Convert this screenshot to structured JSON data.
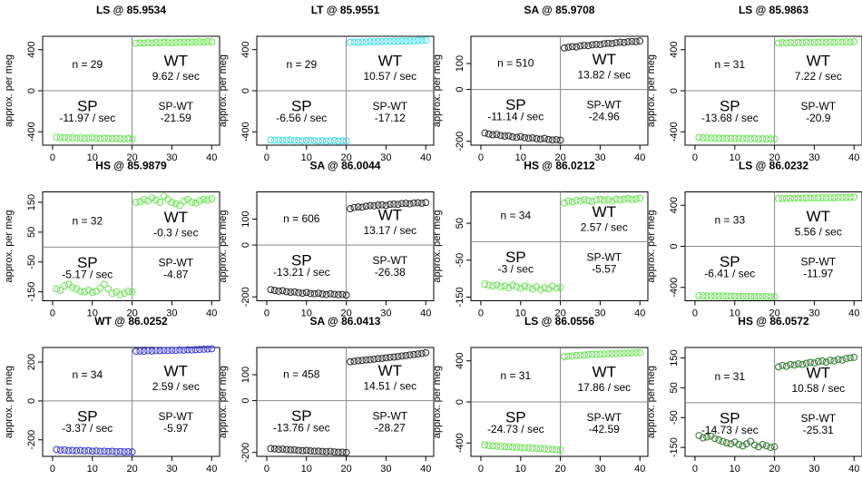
{
  "chart_data": [
    {
      "type": "scatter",
      "title": "LS @ 85.9534",
      "ylabel": "approx. per meg",
      "color": "#66e64d",
      "x": [
        1,
        2,
        3,
        4,
        5,
        6,
        7,
        8,
        9,
        10,
        11,
        12,
        13,
        14,
        15,
        16,
        17,
        18,
        19,
        20,
        21,
        22,
        23,
        24,
        25,
        26,
        27,
        28,
        29,
        30,
        31,
        32,
        33,
        34,
        35,
        36,
        37,
        38,
        39,
        40
      ],
      "values": [
        -452,
        -458,
        -455,
        -460,
        -457,
        -462,
        -459,
        -464,
        -461,
        -458,
        -463,
        -466,
        -462,
        -465,
        -468,
        -464,
        -467,
        -470,
        -466,
        -469,
        462,
        466,
        464,
        468,
        465,
        470,
        467,
        471,
        469,
        466,
        472,
        470,
        474,
        471,
        475,
        473,
        477,
        474,
        478,
        476
      ],
      "xlim": [
        -2.5,
        42
      ],
      "xticks": [
        0,
        10,
        20,
        30,
        40
      ],
      "ylim": [
        -530,
        530
      ],
      "yticks": [
        -400,
        0,
        400
      ],
      "divider_x": 20,
      "divider_y": 0,
      "annotations": [
        "n = 29",
        "WT",
        "9.62 / sec",
        "SP",
        "-11.97 / sec",
        "SP-WT",
        "-21.59"
      ]
    },
    {
      "type": "scatter",
      "title": "LT @ 85.9551",
      "ylabel": "approx. per meg",
      "color": "#33dff0",
      "x": [
        1,
        2,
        3,
        4,
        5,
        6,
        7,
        8,
        9,
        10,
        11,
        12,
        13,
        14,
        15,
        16,
        17,
        18,
        19,
        20,
        21,
        22,
        23,
        24,
        25,
        26,
        27,
        28,
        29,
        30,
        31,
        32,
        33,
        34,
        35,
        36,
        37,
        38,
        39,
        40
      ],
      "values": [
        -478,
        -482,
        -480,
        -485,
        -483,
        -480,
        -486,
        -484,
        -488,
        -485,
        -483,
        -487,
        -489,
        -486,
        -490,
        -488,
        -485,
        -490,
        -487,
        -489,
        470,
        474,
        472,
        476,
        475,
        478,
        476,
        480,
        477,
        481,
        479,
        483,
        480,
        484,
        482,
        486,
        484,
        488,
        490,
        493
      ],
      "xlim": [
        -2.5,
        42
      ],
      "xticks": [
        0,
        10,
        20,
        30,
        40
      ],
      "ylim": [
        -530,
        530
      ],
      "yticks": [
        -400,
        0,
        400
      ],
      "divider_x": 20,
      "divider_y": 0,
      "annotations": [
        "n = 29",
        "WT",
        "10.57 / sec",
        "SP",
        "-6.56 / sec",
        "SP-WT",
        "-17.12"
      ]
    },
    {
      "type": "scatter",
      "title": "SA @ 85.9708",
      "ylabel": "approx. per meg",
      "color": "#222222",
      "x": [
        1,
        2,
        3,
        4,
        5,
        6,
        7,
        8,
        9,
        10,
        11,
        12,
        13,
        14,
        15,
        16,
        17,
        18,
        19,
        20,
        21,
        22,
        23,
        24,
        25,
        26,
        27,
        28,
        29,
        30,
        31,
        32,
        33,
        34,
        35,
        36,
        37,
        38,
        39,
        40
      ],
      "values": [
        -168,
        -172,
        -175,
        -174,
        -178,
        -180,
        -179,
        -183,
        -185,
        -182,
        -186,
        -188,
        -187,
        -190,
        -192,
        -189,
        -193,
        -195,
        -194,
        -196,
        160,
        163,
        165,
        164,
        168,
        170,
        169,
        172,
        174,
        173,
        176,
        178,
        177,
        180,
        182,
        181,
        184,
        185,
        184,
        187
      ],
      "xlim": [
        -2.5,
        42
      ],
      "xticks": [
        0,
        10,
        20,
        30,
        40
      ],
      "ylim": [
        -215,
        205
      ],
      "yticks": [
        -200,
        0,
        100
      ],
      "divider_x": 20,
      "divider_y": 0,
      "annotations": [
        "n = 510",
        "WT",
        "13.82 / sec",
        "SP",
        "-11.14 / sec",
        "SP-WT",
        "-24.96"
      ]
    },
    {
      "type": "scatter",
      "title": "LS @ 85.9863",
      "ylabel": "approx. per meg",
      "color": "#66e64d",
      "x": [
        1,
        2,
        3,
        4,
        5,
        6,
        7,
        8,
        9,
        10,
        11,
        12,
        13,
        14,
        15,
        16,
        17,
        18,
        19,
        20,
        21,
        22,
        23,
        24,
        25,
        26,
        27,
        28,
        29,
        30,
        31,
        32,
        33,
        34,
        35,
        36,
        37,
        38,
        39,
        40
      ],
      "values": [
        -455,
        -460,
        -458,
        -462,
        -460,
        -464,
        -461,
        -465,
        -463,
        -466,
        -462,
        -467,
        -465,
        -468,
        -466,
        -469,
        -467,
        -470,
        -468,
        -470,
        465,
        468,
        466,
        469,
        467,
        470,
        468,
        471,
        469,
        472,
        470,
        473,
        471,
        474,
        472,
        475,
        473,
        476,
        474,
        478
      ],
      "xlim": [
        -2.5,
        42
      ],
      "xticks": [
        0,
        10,
        20,
        30,
        40
      ],
      "ylim": [
        -530,
        530
      ],
      "yticks": [
        -400,
        0,
        400
      ],
      "divider_x": 20,
      "divider_y": 0,
      "annotations": [
        "n = 31",
        "WT",
        "7.22 / sec",
        "SP",
        "-13.68 / sec",
        "SP-WT",
        "-20.9"
      ]
    },
    {
      "type": "scatter",
      "title": "HS @ 85.9879",
      "ylabel": "approx. per meg",
      "color": "#66e64d",
      "x": [
        1,
        2,
        3,
        4,
        5,
        6,
        7,
        8,
        9,
        10,
        11,
        12,
        13,
        14,
        15,
        16,
        17,
        18,
        19,
        20,
        21,
        22,
        23,
        24,
        25,
        26,
        27,
        28,
        29,
        30,
        31,
        32,
        33,
        34,
        35,
        36,
        37,
        38,
        39,
        40
      ],
      "values": [
        -140,
        -145,
        -130,
        -125,
        -135,
        -140,
        -148,
        -150,
        -145,
        -152,
        -148,
        -138,
        -125,
        -140,
        -155,
        -150,
        -160,
        -155,
        -148,
        -150,
        150,
        152,
        160,
        155,
        165,
        158,
        150,
        170,
        160,
        150,
        145,
        140,
        155,
        160,
        150,
        148,
        155,
        160,
        158,
        162
      ],
      "xlim": [
        -2.5,
        42
      ],
      "xticks": [
        0,
        10,
        20,
        30,
        40
      ],
      "ylim": [
        -180,
        185
      ],
      "yticks": [
        -150,
        -50,
        50,
        150
      ],
      "divider_x": 20,
      "divider_y": 0,
      "annotations": [
        "n = 32",
        "WT",
        "-0.3 / sec",
        "SP",
        "-5.17 / sec",
        "SP-WT",
        "-4.87"
      ]
    },
    {
      "type": "scatter",
      "title": "SA @ 86.0044",
      "ylabel": "approx. per meg",
      "color": "#222222",
      "x": [
        1,
        2,
        3,
        4,
        5,
        6,
        7,
        8,
        9,
        10,
        11,
        12,
        13,
        14,
        15,
        16,
        17,
        18,
        19,
        20,
        21,
        22,
        23,
        24,
        25,
        26,
        27,
        28,
        29,
        30,
        31,
        32,
        33,
        34,
        35,
        36,
        37,
        38,
        39,
        40
      ],
      "values": [
        -172,
        -175,
        -178,
        -176,
        -180,
        -182,
        -181,
        -184,
        -186,
        -183,
        -187,
        -188,
        -186,
        -189,
        -191,
        -188,
        -190,
        -192,
        -191,
        -193,
        140,
        145,
        147,
        146,
        150,
        152,
        151,
        154,
        155,
        153,
        157,
        158,
        157,
        160,
        161,
        159,
        162,
        163,
        161,
        164
      ],
      "xlim": [
        -2.5,
        42
      ],
      "xticks": [
        0,
        10,
        20,
        30,
        40
      ],
      "ylim": [
        -215,
        205
      ],
      "yticks": [
        -200,
        0,
        100
      ],
      "divider_x": 20,
      "divider_y": 0,
      "annotations": [
        "n = 606",
        "WT",
        "13.17 / sec",
        "SP",
        "-13.21 / sec",
        "SP-WT",
        "-26.38"
      ]
    },
    {
      "type": "scatter",
      "title": "HS @ 86.0212",
      "ylabel": "approx. per meg",
      "color": "#66e64d",
      "x": [
        1,
        2,
        3,
        4,
        5,
        6,
        7,
        8,
        9,
        10,
        11,
        12,
        13,
        14,
        15,
        16,
        17,
        18,
        19,
        20,
        21,
        22,
        23,
        24,
        25,
        26,
        27,
        28,
        29,
        30,
        31,
        32,
        33,
        34,
        35,
        36,
        37,
        38,
        39,
        40
      ],
      "values": [
        -115,
        -118,
        -120,
        -117,
        -122,
        -120,
        -125,
        -118,
        -122,
        -126,
        -120,
        -124,
        -128,
        -122,
        -130,
        -125,
        -128,
        -120,
        -126,
        -124,
        105,
        110,
        108,
        112,
        110,
        114,
        111,
        109,
        113,
        115,
        112,
        114,
        110,
        116,
        113,
        115,
        117,
        114,
        116,
        118
      ],
      "xlim": [
        -2.5,
        42
      ],
      "xticks": [
        0,
        10,
        20,
        30,
        40
      ],
      "ylim": [
        -160,
        135
      ],
      "yticks": [
        -150,
        -50,
        50
      ],
      "divider_x": 20,
      "divider_y": 0,
      "annotations": [
        "n = 34",
        "WT",
        "2.57 / sec",
        "SP",
        "-3 / sec",
        "SP-WT",
        "-5.57"
      ]
    },
    {
      "type": "scatter",
      "title": "LS @ 86.0232",
      "ylabel": "approx. per meg",
      "color": "#66e64d",
      "x": [
        1,
        2,
        3,
        4,
        5,
        6,
        7,
        8,
        9,
        10,
        11,
        12,
        13,
        14,
        15,
        16,
        17,
        18,
        19,
        20,
        21,
        22,
        23,
        24,
        25,
        26,
        27,
        28,
        29,
        30,
        31,
        32,
        33,
        34,
        35,
        36,
        37,
        38,
        39,
        40
      ],
      "values": [
        -480,
        -482,
        -481,
        -484,
        -483,
        -485,
        -484,
        -486,
        -485,
        -487,
        -486,
        -488,
        -487,
        -488,
        -489,
        -488,
        -490,
        -489,
        -490,
        -490,
        465,
        467,
        466,
        468,
        467,
        469,
        468,
        470,
        469,
        471,
        470,
        472,
        471,
        473,
        472,
        474,
        475,
        476,
        477,
        480
      ],
      "xlim": [
        -2.5,
        42
      ],
      "xticks": [
        0,
        10,
        20,
        30,
        40
      ],
      "ylim": [
        -530,
        530
      ],
      "yticks": [
        -400,
        0,
        400
      ],
      "divider_x": 20,
      "divider_y": 0,
      "annotations": [
        "n = 33",
        "WT",
        "5.56 / sec",
        "SP",
        "-6.41 / sec",
        "SP-WT",
        "-11.97"
      ]
    },
    {
      "type": "scatter",
      "title": "WT @ 86.0252",
      "ylabel": "approx. per meg",
      "color": "#3333dd",
      "x": [
        1,
        2,
        3,
        4,
        5,
        6,
        7,
        8,
        9,
        10,
        11,
        12,
        13,
        14,
        15,
        16,
        17,
        18,
        19,
        20,
        21,
        22,
        23,
        24,
        25,
        26,
        27,
        28,
        29,
        30,
        31,
        32,
        33,
        34,
        35,
        36,
        37,
        38,
        39,
        40
      ],
      "values": [
        -250,
        -253,
        -252,
        -255,
        -254,
        -256,
        -255,
        -257,
        -256,
        -258,
        -257,
        -259,
        -258,
        -260,
        -259,
        -261,
        -260,
        -262,
        -261,
        -262,
        255,
        257,
        256,
        258,
        257,
        259,
        258,
        260,
        259,
        261,
        260,
        262,
        261,
        263,
        262,
        264,
        265,
        266,
        267,
        268
      ],
      "xlim": [
        -2.5,
        42
      ],
      "xticks": [
        0,
        10,
        20,
        30,
        40
      ],
      "ylim": [
        -285,
        275
      ],
      "yticks": [
        -200,
        0,
        200
      ],
      "divider_x": 20,
      "divider_y": 0,
      "annotations": [
        "n = 34",
        "WT",
        "2.59 / sec",
        "SP",
        "-3.37 / sec",
        "SP-WT",
        "-5.97"
      ]
    },
    {
      "type": "scatter",
      "title": "SA @ 86.0413",
      "ylabel": "approx. per meg",
      "color": "#222222",
      "x": [
        1,
        2,
        3,
        4,
        5,
        6,
        7,
        8,
        9,
        10,
        11,
        12,
        13,
        14,
        15,
        16,
        17,
        18,
        19,
        20,
        21,
        22,
        23,
        24,
        25,
        26,
        27,
        28,
        29,
        30,
        31,
        32,
        33,
        34,
        35,
        36,
        37,
        38,
        39,
        40
      ],
      "values": [
        -185,
        -186,
        -188,
        -187,
        -189,
        -190,
        -190,
        -192,
        -193,
        -192,
        -194,
        -195,
        -195,
        -196,
        -197,
        -196,
        -198,
        -199,
        -199,
        -200,
        150,
        152,
        154,
        155,
        157,
        158,
        160,
        162,
        163,
        165,
        167,
        168,
        170,
        172,
        174,
        176,
        178,
        180,
        182,
        185
      ],
      "xlim": [
        -2.5,
        42
      ],
      "xticks": [
        0,
        10,
        20,
        30,
        40
      ],
      "ylim": [
        -215,
        205
      ],
      "yticks": [
        -200,
        0,
        100
      ],
      "divider_x": 20,
      "divider_y": 0,
      "annotations": [
        "n = 458",
        "WT",
        "14.51 / sec",
        "SP",
        "-13.76 / sec",
        "SP-WT",
        "-28.27"
      ]
    },
    {
      "type": "scatter",
      "title": "LS @ 86.0556",
      "ylabel": "approx. per meg",
      "color": "#66e64d",
      "x": [
        1,
        2,
        3,
        4,
        5,
        6,
        7,
        8,
        9,
        10,
        11,
        12,
        13,
        14,
        15,
        16,
        17,
        18,
        19,
        20,
        21,
        22,
        23,
        24,
        25,
        26,
        27,
        28,
        29,
        30,
        31,
        32,
        33,
        34,
        35,
        36,
        37,
        38,
        39,
        40
      ],
      "values": [
        -420,
        -425,
        -428,
        -430,
        -433,
        -435,
        -437,
        -440,
        -442,
        -444,
        -446,
        -448,
        -450,
        -452,
        -455,
        -457,
        -460,
        -462,
        -466,
        -470,
        440,
        445,
        448,
        452,
        455,
        457,
        460,
        462,
        463,
        465,
        467,
        468,
        470,
        471,
        473,
        474,
        476,
        477,
        479,
        480
      ],
      "xlim": [
        -2.5,
        42
      ],
      "xticks": [
        0,
        10,
        20,
        30,
        40
      ],
      "ylim": [
        -530,
        530
      ],
      "yticks": [
        -400,
        0,
        400
      ],
      "divider_x": 20,
      "divider_y": 0,
      "annotations": [
        "n = 31",
        "WT",
        "17.86 / sec",
        "SP",
        "-24.73 / sec",
        "SP-WT",
        "-42.59"
      ]
    },
    {
      "type": "scatter",
      "title": "HS @ 86.0572",
      "ylabel": "approx. per meg",
      "color": "#2a7a2a",
      "x": [
        1,
        2,
        3,
        4,
        5,
        6,
        7,
        8,
        9,
        10,
        11,
        12,
        13,
        14,
        15,
        16,
        17,
        18,
        19,
        20,
        21,
        22,
        23,
        24,
        25,
        26,
        27,
        28,
        29,
        30,
        31,
        32,
        33,
        34,
        35,
        36,
        37,
        38,
        39,
        40
      ],
      "values": [
        -110,
        -118,
        -115,
        -112,
        -120,
        -125,
        -130,
        -135,
        -138,
        -132,
        -140,
        -145,
        -138,
        -130,
        -142,
        -148,
        -140,
        -145,
        -150,
        -148,
        120,
        125,
        122,
        128,
        126,
        130,
        128,
        132,
        135,
        133,
        138,
        140,
        136,
        142,
        140,
        145,
        143,
        148,
        150,
        152
      ],
      "xlim": [
        -2.5,
        42
      ],
      "xticks": [
        0,
        10,
        20,
        30,
        40
      ],
      "ylim": [
        -180,
        185
      ],
      "yticks": [
        -150,
        -50,
        50,
        150
      ],
      "divider_x": 20,
      "divider_y": 0,
      "annotations": [
        "n = 31",
        "WT",
        "10.58 / sec",
        "SP",
        "-14.73 / sec",
        "SP-WT",
        "-25.31"
      ]
    }
  ]
}
